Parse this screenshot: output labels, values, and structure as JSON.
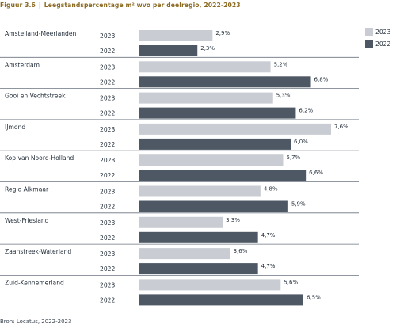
{
  "figure": {
    "number": "Figuur 3.6",
    "separator": "|",
    "title": "Leegstandspercentage m² wvo per deelregio, 2022-2023",
    "source": "Bron: Locatus, 2022-2023"
  },
  "chart_data": {
    "type": "bar",
    "orientation": "horizontal",
    "categories": [
      "Amstelland-Meerlanden",
      "Amsterdam",
      "Gooi en Vechtstreek",
      "IJmond",
      "Kop van Noord-Holland",
      "Regio Alkmaar",
      "West-Friesland",
      "Zaanstreek-Waterland",
      "Zuid-Kennemerland"
    ],
    "series": [
      {
        "name": "2023",
        "color": "#c9cdd3",
        "values": [
          2.9,
          5.2,
          5.3,
          7.6,
          5.7,
          4.8,
          3.3,
          3.6,
          5.6
        ],
        "labels": [
          "2,9%",
          "5,2%",
          "5,3%",
          "7,6%",
          "5,7%",
          "4,8%",
          "3,3%",
          "3,6%",
          "5,6%"
        ]
      },
      {
        "name": "2022",
        "color": "#4e5864",
        "values": [
          2.3,
          6.8,
          6.2,
          6.0,
          6.6,
          5.9,
          4.7,
          4.7,
          6.5
        ],
        "labels": [
          "2,3%",
          "6,8%",
          "6,2%",
          "6,0%",
          "6,6%",
          "5,9%",
          "4,7%",
          "4,7%",
          "6,5%"
        ]
      }
    ],
    "xlim": [
      0,
      7.6
    ],
    "legend_position": "top-right",
    "grid": false
  }
}
